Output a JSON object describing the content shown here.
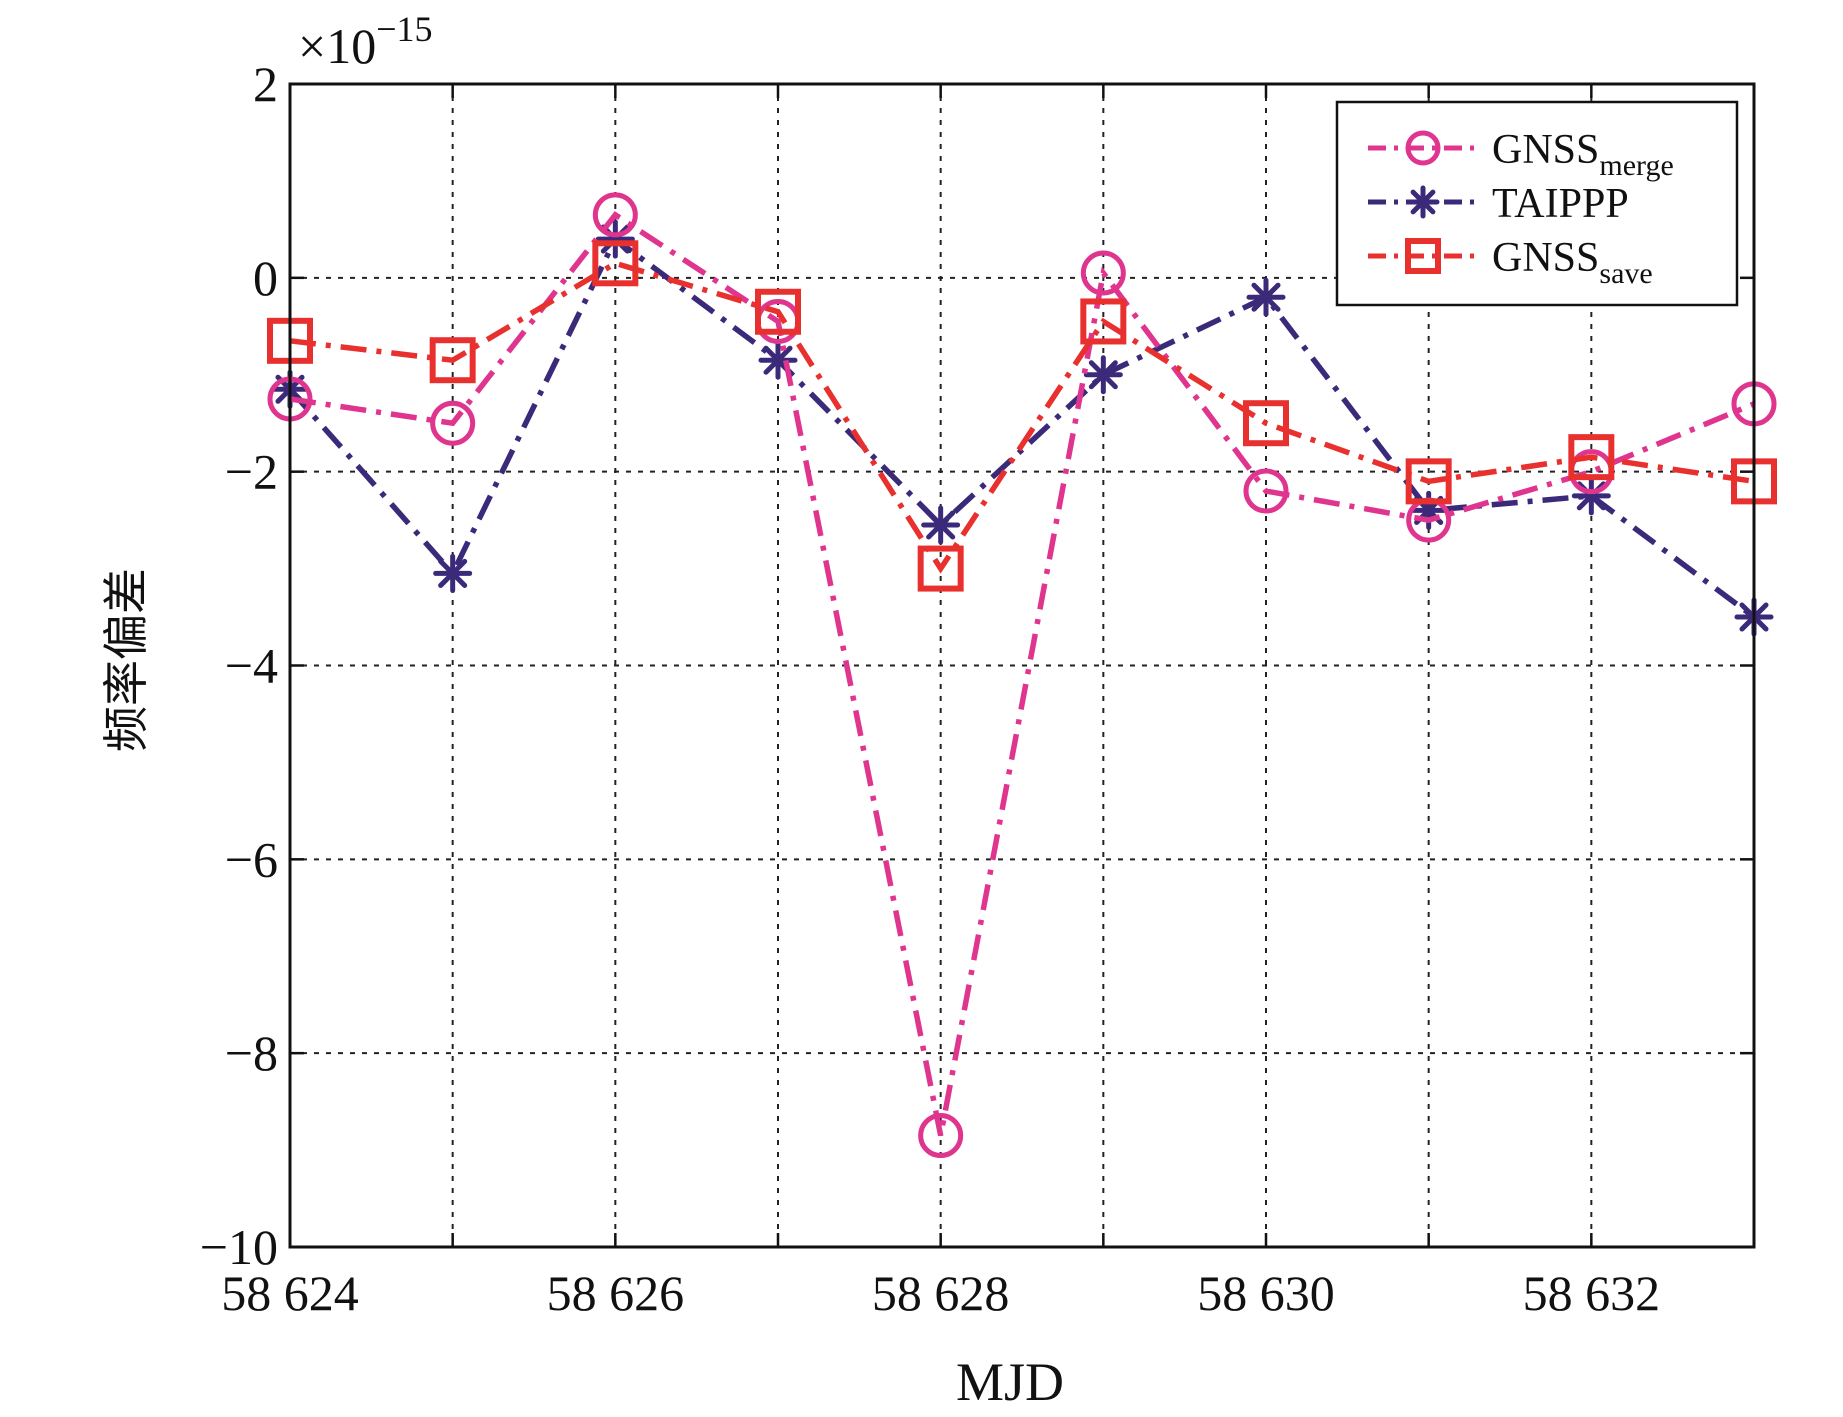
{
  "chart_data": {
    "type": "line",
    "title": "",
    "xlabel": "MJD",
    "ylabel": "频率偏差",
    "exponent_label": {
      "base": "×10",
      "power": "−15"
    },
    "x": [
      58624,
      58625,
      58626,
      58627,
      58628,
      58629,
      58630,
      58631,
      58632,
      58633
    ],
    "xlim": [
      58624,
      58633
    ],
    "ylim": [
      -10,
      2
    ],
    "xticks": [
      58624,
      58625,
      58626,
      58627,
      58628,
      58629,
      58630,
      58631,
      58632,
      58633
    ],
    "xtick_labels": [
      "58 624",
      "",
      "58 626",
      "",
      "58 628",
      "",
      "58 630",
      "",
      "58 632",
      ""
    ],
    "yticks": [
      2,
      0,
      -2,
      -4,
      -6,
      -8,
      -10
    ],
    "ytick_labels": [
      "2",
      "0",
      "−2",
      "−4",
      "−6",
      "−8",
      "−10"
    ],
    "grid": true,
    "legend_position": "top-right",
    "series": [
      {
        "name": "GNSSmerge",
        "legend_main": "GNSS",
        "legend_sub": "merge",
        "color": "#E0358F",
        "marker": "circle",
        "values": [
          -1.25,
          -1.5,
          0.65,
          -0.45,
          -8.85,
          0.05,
          -2.2,
          -2.5,
          -2.0,
          -1.3
        ]
      },
      {
        "name": "TAIPPP",
        "legend_main": "TAIPPP",
        "legend_sub": "",
        "color": "#3B2A7A",
        "marker": "asterisk",
        "values": [
          -1.15,
          -3.05,
          0.4,
          -0.85,
          -2.55,
          -1.0,
          -0.2,
          -2.4,
          -2.25,
          -3.5
        ]
      },
      {
        "name": "GNSSsave",
        "legend_main": "GNSS",
        "legend_sub": "save",
        "color": "#E8312F",
        "marker": "square",
        "values": [
          -0.65,
          -0.85,
          0.15,
          -0.35,
          -3.0,
          -0.45,
          -1.5,
          -2.1,
          -1.85,
          -2.1
        ]
      }
    ]
  }
}
